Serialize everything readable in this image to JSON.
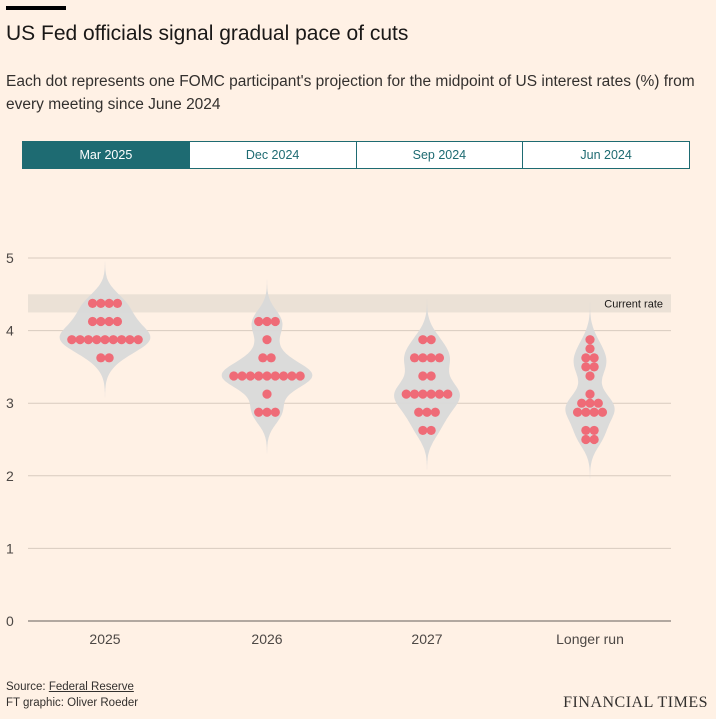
{
  "title": "US Fed officials signal gradual pace of cuts",
  "subtitle": "Each dot represents one FOMC participant's projection for the midpoint of US interest rates (%) from every meeting since June 2024",
  "tabs": [
    {
      "label": "Mar 2025",
      "active": true
    },
    {
      "label": "Dec 2024",
      "active": false
    },
    {
      "label": "Sep 2024",
      "active": false
    },
    {
      "label": "Jun 2024",
      "active": false
    }
  ],
  "source_label": "Source: ",
  "source_link": "Federal Reserve",
  "credit": "FT graphic: Oliver Roeder",
  "brand": "FINANCIAL TIMES",
  "chart_data": {
    "type": "violin-dot",
    "ylim": [
      0,
      5
    ],
    "yticks": [
      "0",
      "1",
      "2",
      "3",
      "4",
      "5"
    ],
    "categories": [
      "2025",
      "2026",
      "2027",
      "Longer run"
    ],
    "current_rate": {
      "label": "Current rate",
      "range": [
        4.25,
        4.5
      ]
    },
    "colors": {
      "dot": "#ef6b77",
      "violin": "#d9d9d9",
      "band": "#ebe1d6"
    },
    "groups": [
      {
        "name": "2025",
        "dots": [
          {
            "v": 4.375,
            "n": 4
          },
          {
            "v": 4.125,
            "n": 4
          },
          {
            "v": 3.875,
            "n": 9
          },
          {
            "v": 3.625,
            "n": 2
          }
        ]
      },
      {
        "name": "2026",
        "dots": [
          {
            "v": 4.125,
            "n": 3
          },
          {
            "v": 3.875,
            "n": 1
          },
          {
            "v": 3.625,
            "n": 2
          },
          {
            "v": 3.375,
            "n": 9
          },
          {
            "v": 3.125,
            "n": 1
          },
          {
            "v": 2.875,
            "n": 3
          }
        ]
      },
      {
        "name": "2027",
        "dots": [
          {
            "v": 3.875,
            "n": 2
          },
          {
            "v": 3.625,
            "n": 4
          },
          {
            "v": 3.375,
            "n": 2
          },
          {
            "v": 3.125,
            "n": 6
          },
          {
            "v": 2.875,
            "n": 3
          },
          {
            "v": 2.625,
            "n": 2
          }
        ]
      },
      {
        "name": "Longer run",
        "dots": [
          {
            "v": 3.875,
            "n": 1
          },
          {
            "v": 3.75,
            "n": 1
          },
          {
            "v": 3.625,
            "n": 2
          },
          {
            "v": 3.5,
            "n": 2
          },
          {
            "v": 3.375,
            "n": 1
          },
          {
            "v": 3.125,
            "n": 1
          },
          {
            "v": 3.0,
            "n": 3
          },
          {
            "v": 2.875,
            "n": 4
          },
          {
            "v": 2.625,
            "n": 2
          },
          {
            "v": 2.5,
            "n": 2
          }
        ]
      }
    ]
  }
}
